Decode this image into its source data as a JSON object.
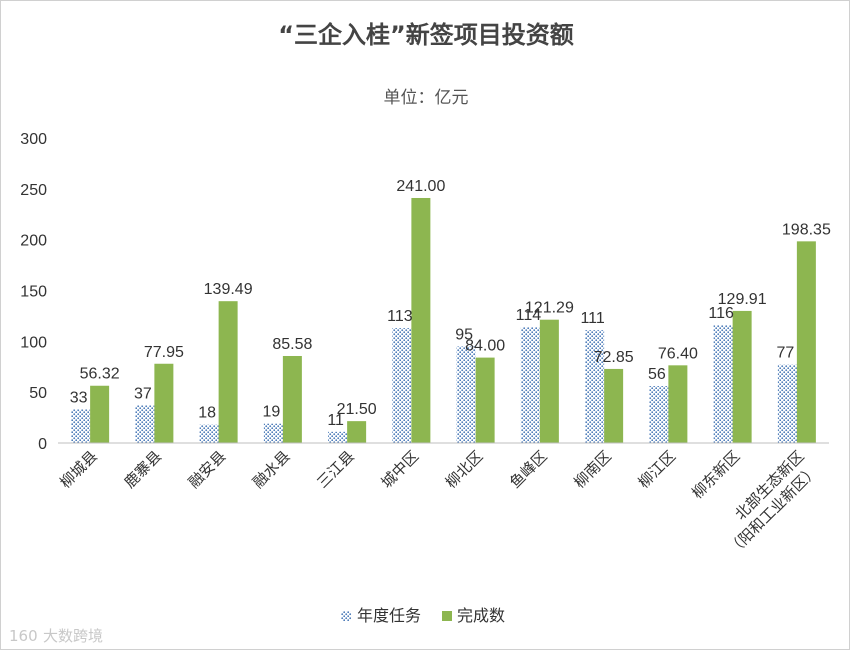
{
  "chart_data": {
    "type": "bar",
    "title": "“三企入桂”新签项目投资额",
    "subtitle": "单位：亿元",
    "ylim": [
      0,
      300
    ],
    "yticks": [
      0,
      50,
      100,
      150,
      200,
      250,
      300
    ],
    "categories": [
      "柳城县",
      "鹿寨县",
      "融安县",
      "融水县",
      "三江县",
      "城中区",
      "柳北区",
      "鱼峰区",
      "柳南区",
      "柳江区",
      "柳东新区",
      "北部生态新区\n（阳和工业新区）"
    ],
    "series": [
      {
        "name": "年度任务",
        "values": [
          33,
          37,
          18,
          19,
          11,
          113,
          95,
          114,
          111,
          56,
          116,
          77
        ],
        "labels": [
          "33",
          "37",
          "18",
          "19",
          "11",
          "113",
          "95",
          "114",
          "111",
          "56",
          "116",
          "77"
        ],
        "color": "#4a7ab8",
        "pattern": "dots"
      },
      {
        "name": "完成数",
        "values": [
          56.32,
          77.95,
          139.49,
          85.58,
          21.5,
          241.0,
          84.0,
          121.29,
          72.85,
          76.4,
          129.91,
          198.35
        ],
        "labels": [
          "56.32",
          "77.95",
          "139.49",
          "85.58",
          "21.50",
          "241.00",
          "84.00",
          "121.29",
          "72.85",
          "76.40",
          "129.91",
          "198.35"
        ],
        "color": "#8db650"
      }
    ],
    "legend_position": "bottom-center"
  },
  "watermark": "大数跨境",
  "watermark_logo": "160"
}
